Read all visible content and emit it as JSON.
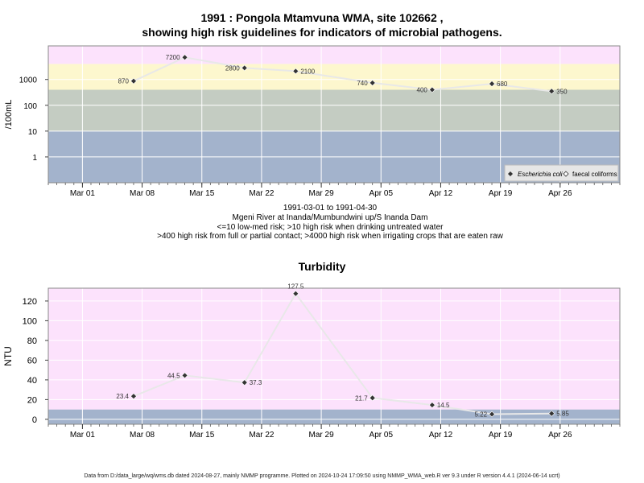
{
  "chart_data": [
    {
      "type": "scatter",
      "title_line1": "1991 : Pongola Mtamvuna WMA, site 102662 ,",
      "title_line2": "showing high risk guidelines for indicators of microbial pathogens.",
      "ylabel": "/100mL",
      "yscale": "log",
      "yticks": [
        "1",
        "10",
        "100",
        "1000"
      ],
      "xticks": [
        "Mar 01",
        "Mar 08",
        "Mar 15",
        "Mar 22",
        "Mar 29",
        "Apr 05",
        "Apr 12",
        "Apr 19",
        "Apr 26"
      ],
      "xlim": [
        "1991-02-25",
        "1991-05-03"
      ],
      "guideline_bands": [
        {
          "from": 0,
          "to": 10,
          "color": "#a3b3cc"
        },
        {
          "from": 10,
          "to": 400,
          "color": "#c4ccc2"
        },
        {
          "from": 400,
          "to": 4000,
          "color": "#fdf7ce"
        },
        {
          "from": 4000,
          "to": null,
          "color": "#fce2fc"
        }
      ],
      "series": [
        {
          "name": "Escherichia coli",
          "marker": "filled-diamond",
          "points": [
            {
              "x": "1991-03-07",
              "y": 870,
              "label": "870"
            },
            {
              "x": "1991-03-13",
              "y": 7200,
              "label": "7200"
            },
            {
              "x": "1991-03-20",
              "y": 2800,
              "label": "2800"
            },
            {
              "x": "1991-03-26",
              "y": 2100,
              "label": "2100"
            },
            {
              "x": "1991-04-04",
              "y": 740,
              "label": "740"
            },
            {
              "x": "1991-04-11",
              "y": 400,
              "label": "400"
            },
            {
              "x": "1991-04-18",
              "y": 680,
              "label": "680"
            },
            {
              "x": "1991-04-25",
              "y": 350,
              "label": "350"
            }
          ]
        }
      ],
      "legend": {
        "placement": "bottom-right",
        "entries": [
          "Escherichia coli",
          "faecal coliforms"
        ]
      },
      "caption": [
        "1991-03-01 to 1991-04-30",
        "Mgeni River at Inanda/Mumbundwini up/S Inanda Dam",
        "<=10 low-med risk; >10 high risk when drinking untreated water",
        ">400 high risk from full or partial contact; >4000 high risk when irrigating crops that are eaten raw"
      ]
    },
    {
      "type": "scatter",
      "title": "Turbidity",
      "ylabel": "NTU",
      "ylim": [
        -5,
        133
      ],
      "yticks": [
        "0",
        "20",
        "40",
        "60",
        "80",
        "100",
        "120"
      ],
      "xticks": [
        "Mar 01",
        "Mar 08",
        "Mar 15",
        "Mar 22",
        "Mar 29",
        "Apr 05",
        "Apr 12",
        "Apr 19",
        "Apr 26"
      ],
      "xlim": [
        "1991-02-25",
        "1991-05-03"
      ],
      "guideline_bands": [
        {
          "from": null,
          "to": 10,
          "color": "#a3b3cc"
        },
        {
          "from": 10,
          "to": null,
          "color": "#fce2fc"
        }
      ],
      "series": [
        {
          "marker": "filled-diamond",
          "points": [
            {
              "x": "1991-03-07",
              "y": 23.4,
              "label": "23.4"
            },
            {
              "x": "1991-03-13",
              "y": 44.5,
              "label": "44.5"
            },
            {
              "x": "1991-03-20",
              "y": 37.3,
              "label": "37.3"
            },
            {
              "x": "1991-03-26",
              "y": 127.5,
              "label": "127.5"
            },
            {
              "x": "1991-04-04",
              "y": 21.7,
              "label": "21.7"
            },
            {
              "x": "1991-04-11",
              "y": 14.5,
              "label": "14.5"
            },
            {
              "x": "1991-04-18",
              "y": 5.22,
              "label": "5.22"
            },
            {
              "x": "1991-04-25",
              "y": 5.85,
              "label": "5.85"
            }
          ]
        }
      ]
    }
  ],
  "footer": "Data from D:/data_large/wq/wms.db dated 2024-08-27, mainly NMMP programme. Plotted on 2024-10-24 17:09:50 using NMMP_WMA_web.R ver 9.3 under R version 4.4.1 (2024-06-14 ucrt)"
}
